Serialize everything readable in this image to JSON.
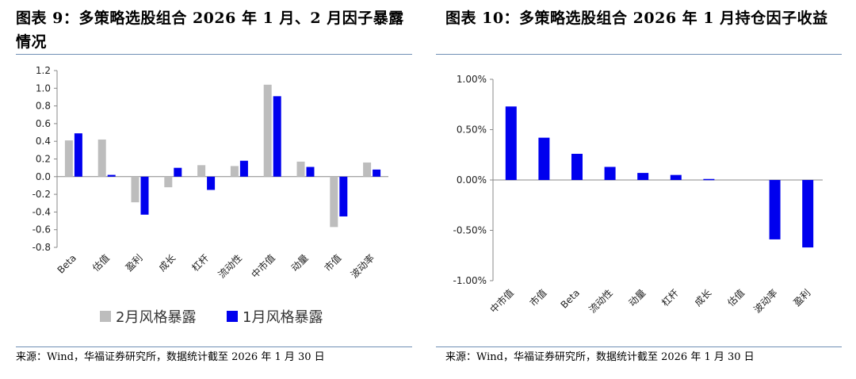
{
  "left": {
    "title": "图表 9：多策略选股组合 2026 年 1 月、2 月因子暴露情况",
    "source": "来源：Wind，华福证券研究所，数据统计截至 2026 年 1 月 30 日"
  },
  "right": {
    "title": "图表 10：多策略选股组合 2026 年 1 月持仓因子收益",
    "source": "来源：Wind，华福证券研究所，数据统计截至 2026 年 1 月 30 日"
  },
  "colors": {
    "gray": "#bdbdbd",
    "blue": "#0000ee",
    "rule": "#6f8fb5"
  },
  "chart_data": [
    {
      "type": "bar",
      "categories": [
        "Beta",
        "估值",
        "盈利",
        "成长",
        "杠杆",
        "流动性",
        "中市值",
        "动量",
        "市值",
        "波动率"
      ],
      "series": [
        {
          "name": "2月风格暴露",
          "values": [
            0.41,
            0.42,
            -0.29,
            -0.12,
            0.13,
            0.12,
            1.04,
            0.17,
            -0.57,
            0.16
          ]
        },
        {
          "name": "1月风格暴露",
          "values": [
            0.49,
            0.02,
            -0.43,
            0.1,
            -0.15,
            0.18,
            0.91,
            0.11,
            -0.45,
            0.08
          ]
        }
      ],
      "yticks": [
        "1.2",
        "1.0",
        "0.8",
        "0.6",
        "0.4",
        "0.2",
        "0.0",
        "-0.2",
        "-0.4",
        "-0.6",
        "-0.8"
      ],
      "ylim": [
        -0.8,
        1.2
      ],
      "legend": "bottom"
    },
    {
      "type": "bar",
      "categories": [
        "中市值",
        "市值",
        "Beta",
        "流动性",
        "动量",
        "杠杆",
        "成长",
        "估值",
        "波动率",
        "盈利"
      ],
      "values": [
        0.73,
        0.42,
        0.26,
        0.13,
        0.07,
        0.05,
        0.01,
        0.0,
        -0.59,
        -0.67
      ],
      "yticks": [
        "1.00%",
        "0.50%",
        "0.00%",
        "-0.50%",
        "-1.00%"
      ],
      "ylim": [
        -1.0,
        1.0
      ]
    }
  ]
}
